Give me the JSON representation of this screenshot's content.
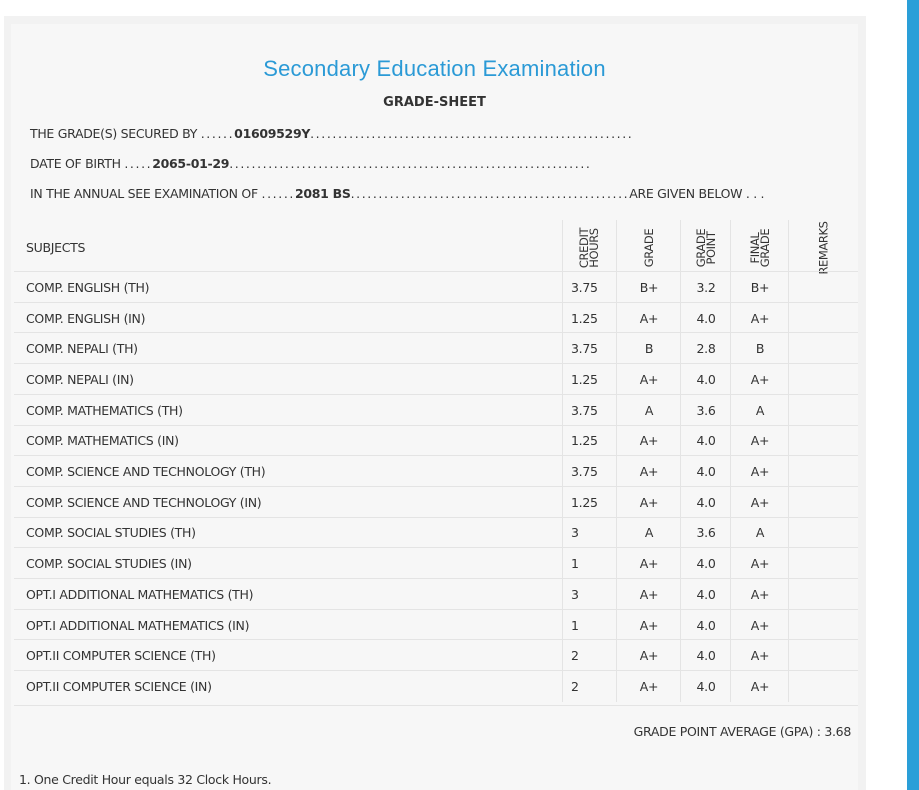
{
  "header": {
    "title": "Secondary Education Examination",
    "subtitle": "GRADE-SHEET"
  },
  "student": {
    "secured_by_label": "THE GRADE(S) SECURED BY",
    "secured_by_value": "01609529Y",
    "dob_label": "DATE OF BIRTH",
    "dob_value": "2065-01-29",
    "exam_label": "IN THE ANNUAL SEE EXAMINATION OF",
    "exam_value": "2081 BS",
    "exam_suffix": "ARE GIVEN BELOW . . ."
  },
  "table": {
    "headers": {
      "subjects": "SUBJECTS",
      "credit_hours": "CREDIT\nHOURS",
      "grade": "GRADE",
      "grade_point": "GRADE\nPOINT",
      "final_grade": "FINAL\nGRADE",
      "remarks": "REMARKS"
    },
    "rows": [
      {
        "subject": "COMP. ENGLISH (TH)",
        "credit": "3.75",
        "grade": "B+",
        "point": "3.2",
        "final": "B+",
        "remarks": ""
      },
      {
        "subject": "COMP. ENGLISH (IN)",
        "credit": "1.25",
        "grade": "A+",
        "point": "4.0",
        "final": "A+",
        "remarks": ""
      },
      {
        "subject": "COMP. NEPALI (TH)",
        "credit": "3.75",
        "grade": "B",
        "point": "2.8",
        "final": "B",
        "remarks": ""
      },
      {
        "subject": "COMP. NEPALI (IN)",
        "credit": "1.25",
        "grade": "A+",
        "point": "4.0",
        "final": "A+",
        "remarks": ""
      },
      {
        "subject": "COMP. MATHEMATICS (TH)",
        "credit": "3.75",
        "grade": "A",
        "point": "3.6",
        "final": "A",
        "remarks": ""
      },
      {
        "subject": "COMP. MATHEMATICS (IN)",
        "credit": "1.25",
        "grade": "A+",
        "point": "4.0",
        "final": "A+",
        "remarks": ""
      },
      {
        "subject": "COMP. SCIENCE AND TECHNOLOGY (TH)",
        "credit": "3.75",
        "grade": "A+",
        "point": "4.0",
        "final": "A+",
        "remarks": ""
      },
      {
        "subject": "COMP. SCIENCE AND TECHNOLOGY (IN)",
        "credit": "1.25",
        "grade": "A+",
        "point": "4.0",
        "final": "A+",
        "remarks": ""
      },
      {
        "subject": "COMP. SOCIAL STUDIES (TH)",
        "credit": "3",
        "grade": "A",
        "point": "3.6",
        "final": "A",
        "remarks": ""
      },
      {
        "subject": "COMP. SOCIAL STUDIES (IN)",
        "credit": "1",
        "grade": "A+",
        "point": "4.0",
        "final": "A+",
        "remarks": ""
      },
      {
        "subject": "OPT.I ADDITIONAL MATHEMATICS (TH)",
        "credit": "3",
        "grade": "A+",
        "point": "4.0",
        "final": "A+",
        "remarks": ""
      },
      {
        "subject": "OPT.I ADDITIONAL MATHEMATICS (IN)",
        "credit": "1",
        "grade": "A+",
        "point": "4.0",
        "final": "A+",
        "remarks": ""
      },
      {
        "subject": "OPT.II COMPUTER SCIENCE (TH)",
        "credit": "2",
        "grade": "A+",
        "point": "4.0",
        "final": "A+",
        "remarks": ""
      },
      {
        "subject": "OPT.II COMPUTER SCIENCE (IN)",
        "credit": "2",
        "grade": "A+",
        "point": "4.0",
        "final": "A+",
        "remarks": ""
      }
    ]
  },
  "gpa": {
    "label": "GRADE POINT AVERAGE (GPA) :",
    "value": "3.68"
  },
  "footnote": "1. One Credit Hour equals 32 Clock Hours.",
  "colors": {
    "title": "#2b9ad6",
    "accent_bar": "#2a9fd8",
    "card_bg": "#f7f7f7"
  }
}
